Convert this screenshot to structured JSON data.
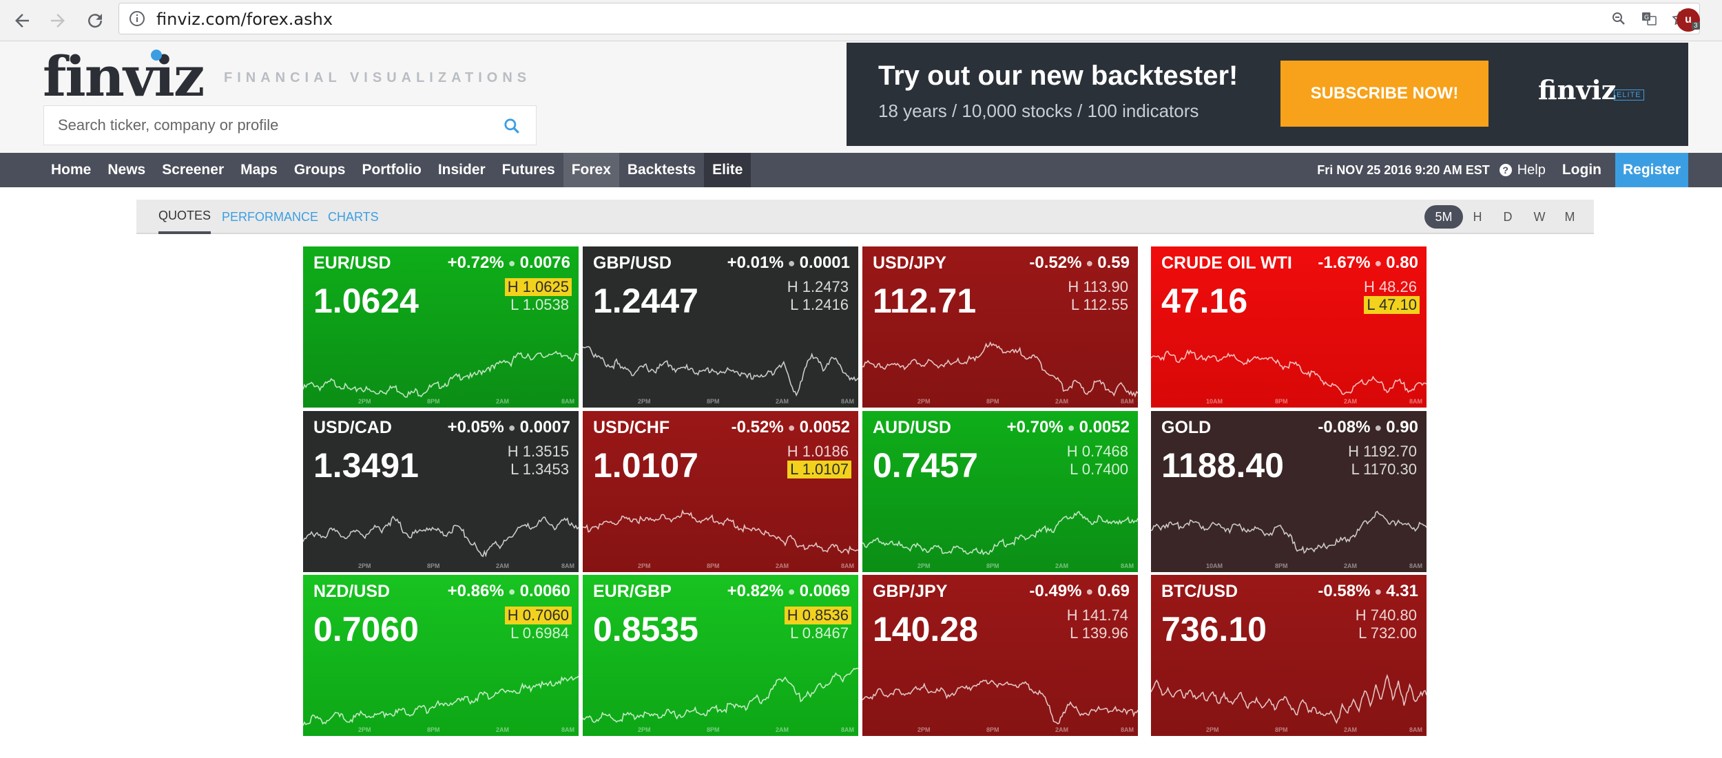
{
  "browser": {
    "url": "finviz.com/forex.ashx",
    "extension_label": "u",
    "extension_badge": "3"
  },
  "header": {
    "logo": "finviz",
    "tagline": "FINANCIAL VISUALIZATIONS",
    "search_placeholder": "Search ticker, company or profile"
  },
  "ad": {
    "headline": "Try out our new backtester!",
    "subline": "18 years / 10,000 stocks / 100 indicators",
    "button": "SUBSCRIBE NOW!",
    "logo": "finviz",
    "badge": "ELITE",
    "button_color": "#f7a21a"
  },
  "nav": {
    "items": [
      "Home",
      "News",
      "Screener",
      "Maps",
      "Groups",
      "Portfolio",
      "Insider",
      "Futures",
      "Forex",
      "Backtests",
      "Elite"
    ],
    "active": "Forex",
    "datetime": "Fri NOV 25 2016 9:20 AM EST",
    "help": "Help",
    "login": "Login",
    "register": "Register"
  },
  "subtabs": {
    "tabs": [
      "QUOTES",
      "PERFORMANCE",
      "CHARTS"
    ],
    "active_tab": "QUOTES",
    "timeframes": [
      "5M",
      "H",
      "D",
      "W",
      "M"
    ],
    "active_timeframe": "5M"
  },
  "colors": {
    "accent": "#3c9ee2",
    "nav_bg": "#4b4f5b",
    "up_green": "#0fae19",
    "down_red": "#9a1717",
    "highlight": "#f2d21c"
  },
  "tiles": [
    {
      "symbol": "EUR/USD",
      "pct": "+0.72%",
      "change": "0.0076",
      "price": "1.0624",
      "high": "H 1.0625",
      "low": "L 1.0538",
      "marked": "high",
      "theme": "green",
      "times": [
        "2PM",
        "8PM",
        "2AM",
        "8AM"
      ],
      "spark": [
        0.15,
        0.2,
        0.22,
        0.18,
        0.2,
        0.25,
        0.22,
        0.2,
        0.15,
        0.12,
        0.18,
        0.15,
        0.12,
        0.1,
        0.15,
        0.12,
        0.18,
        0.15,
        0.1,
        0.08,
        0.12,
        0.1,
        0.15,
        0.18,
        0.2,
        0.22,
        0.25,
        0.3,
        0.32,
        0.35,
        0.3,
        0.35,
        0.4,
        0.45,
        0.42,
        0.5,
        0.55,
        0.48,
        0.6,
        0.58,
        0.62,
        0.55,
        0.6,
        0.58,
        0.65,
        0.6,
        0.58,
        0.62,
        0.55,
        0.6
      ]
    },
    {
      "symbol": "GBP/USD",
      "pct": "+0.01%",
      "change": "0.0001",
      "price": "1.2447",
      "high": "H 1.2473",
      "low": "L 1.2416",
      "marked": "none",
      "theme": "dark",
      "times": [
        "2PM",
        "8PM",
        "2AM",
        "8AM"
      ],
      "spark": [
        0.7,
        0.75,
        0.6,
        0.55,
        0.5,
        0.45,
        0.5,
        0.4,
        0.45,
        0.35,
        0.4,
        0.45,
        0.42,
        0.4,
        0.45,
        0.5,
        0.45,
        0.4,
        0.42,
        0.45,
        0.4,
        0.35,
        0.4,
        0.42,
        0.38,
        0.35,
        0.4,
        0.42,
        0.35,
        0.3,
        0.32,
        0.35,
        0.3,
        0.35,
        0.4,
        0.5,
        0.45,
        0.2,
        0.1,
        0.3,
        0.5,
        0.6,
        0.55,
        0.4,
        0.5,
        0.6,
        0.45,
        0.3,
        0.25,
        0.3
      ]
    },
    {
      "symbol": "USD/JPY",
      "pct": "-0.52%",
      "change": "0.59",
      "price": "112.71",
      "high": "H 113.90",
      "low": "L 112.55",
      "marked": "none",
      "theme": "dred",
      "times": [
        "2PM",
        "8PM",
        "2AM",
        "8AM"
      ],
      "spark": [
        0.5,
        0.48,
        0.45,
        0.5,
        0.42,
        0.45,
        0.5,
        0.48,
        0.45,
        0.5,
        0.52,
        0.48,
        0.5,
        0.45,
        0.48,
        0.5,
        0.45,
        0.52,
        0.5,
        0.55,
        0.52,
        0.6,
        0.75,
        0.72,
        0.7,
        0.68,
        0.65,
        0.62,
        0.65,
        0.6,
        0.58,
        0.55,
        0.45,
        0.4,
        0.3,
        0.25,
        0.15,
        0.2,
        0.25,
        0.15,
        0.1,
        0.2,
        0.25,
        0.18,
        0.15,
        0.1,
        0.2,
        0.15,
        0.12,
        0.1
      ]
    },
    {
      "symbol": "CRUDE OIL WTI",
      "pct": "-1.67%",
      "change": "0.80",
      "price": "47.16",
      "high": "H 48.26",
      "low": "L 47.10",
      "marked": "low",
      "theme": "bred",
      "times": [
        "10AM",
        "8PM",
        "2AM",
        "8AM"
      ],
      "spark": [
        0.55,
        0.6,
        0.58,
        0.62,
        0.58,
        0.55,
        0.6,
        0.62,
        0.58,
        0.6,
        0.55,
        0.58,
        0.55,
        0.6,
        0.58,
        0.55,
        0.52,
        0.5,
        0.52,
        0.55,
        0.6,
        0.55,
        0.5,
        0.48,
        0.45,
        0.5,
        0.45,
        0.4,
        0.38,
        0.35,
        0.3,
        0.25,
        0.2,
        0.15,
        0.1,
        0.12,
        0.15,
        0.2,
        0.25,
        0.3,
        0.25,
        0.2,
        0.15,
        0.2,
        0.25,
        0.2,
        0.15,
        0.18,
        0.2,
        0.22
      ]
    },
    {
      "symbol": "USD/CAD",
      "pct": "+0.05%",
      "change": "0.0007",
      "price": "1.3491",
      "high": "H 1.3515",
      "low": "L 1.3453",
      "marked": "none",
      "theme": "dark",
      "times": [
        "2PM",
        "8PM",
        "2AM",
        "8AM"
      ],
      "spark": [
        0.35,
        0.4,
        0.38,
        0.42,
        0.4,
        0.45,
        0.42,
        0.4,
        0.38,
        0.42,
        0.45,
        0.4,
        0.45,
        0.5,
        0.48,
        0.55,
        0.6,
        0.55,
        0.45,
        0.4,
        0.42,
        0.45,
        0.5,
        0.48,
        0.45,
        0.4,
        0.45,
        0.5,
        0.45,
        0.4,
        0.3,
        0.2,
        0.1,
        0.25,
        0.3,
        0.2,
        0.35,
        0.4,
        0.45,
        0.5,
        0.55,
        0.5,
        0.55,
        0.6,
        0.55,
        0.5,
        0.55,
        0.6,
        0.55,
        0.5
      ]
    },
    {
      "symbol": "USD/CHF",
      "pct": "-0.52%",
      "change": "0.0052",
      "price": "1.0107",
      "high": "H 1.0186",
      "low": "L 1.0107",
      "marked": "low",
      "theme": "dred",
      "times": [
        "2PM",
        "8PM",
        "2AM",
        "8AM"
      ],
      "spark": [
        0.5,
        0.48,
        0.52,
        0.5,
        0.55,
        0.58,
        0.55,
        0.6,
        0.58,
        0.62,
        0.6,
        0.58,
        0.6,
        0.62,
        0.65,
        0.6,
        0.62,
        0.65,
        0.68,
        0.65,
        0.62,
        0.6,
        0.58,
        0.62,
        0.6,
        0.55,
        0.58,
        0.55,
        0.5,
        0.48,
        0.45,
        0.5,
        0.45,
        0.4,
        0.35,
        0.4,
        0.3,
        0.35,
        0.25,
        0.3,
        0.2,
        0.25,
        0.28,
        0.2,
        0.22,
        0.25,
        0.2,
        0.22,
        0.18,
        0.2
      ]
    },
    {
      "symbol": "AUD/USD",
      "pct": "+0.70%",
      "change": "0.0052",
      "price": "0.7457",
      "high": "H 0.7468",
      "low": "L 0.7400",
      "marked": "none",
      "theme": "green",
      "times": [
        "2PM",
        "8PM",
        "2AM",
        "8AM"
      ],
      "spark": [
        0.3,
        0.28,
        0.3,
        0.32,
        0.3,
        0.28,
        0.25,
        0.28,
        0.25,
        0.22,
        0.25,
        0.22,
        0.2,
        0.22,
        0.2,
        0.18,
        0.2,
        0.22,
        0.2,
        0.18,
        0.2,
        0.15,
        0.18,
        0.2,
        0.25,
        0.3,
        0.28,
        0.32,
        0.35,
        0.38,
        0.4,
        0.42,
        0.45,
        0.5,
        0.48,
        0.55,
        0.6,
        0.65,
        0.7,
        0.62,
        0.6,
        0.58,
        0.62,
        0.55,
        0.58,
        0.6,
        0.55,
        0.58,
        0.6,
        0.62
      ]
    },
    {
      "symbol": "GOLD",
      "pct": "-0.08%",
      "change": "0.90",
      "price": "1188.40",
      "high": "H 1192.70",
      "low": "L 1170.30",
      "marked": "none",
      "theme": "dbrown",
      "times": [
        "10AM",
        "8PM",
        "2AM",
        "8AM"
      ],
      "spark": [
        0.45,
        0.5,
        0.52,
        0.55,
        0.5,
        0.52,
        0.55,
        0.58,
        0.55,
        0.52,
        0.5,
        0.55,
        0.52,
        0.5,
        0.48,
        0.52,
        0.5,
        0.48,
        0.45,
        0.48,
        0.45,
        0.42,
        0.45,
        0.48,
        0.45,
        0.4,
        0.15,
        0.2,
        0.25,
        0.2,
        0.22,
        0.25,
        0.28,
        0.3,
        0.32,
        0.35,
        0.4,
        0.45,
        0.55,
        0.6,
        0.7,
        0.65,
        0.55,
        0.6,
        0.55,
        0.5,
        0.55,
        0.5,
        0.52,
        0.5
      ]
    },
    {
      "symbol": "NZD/USD",
      "pct": "+0.86%",
      "change": "0.0060",
      "price": "0.7060",
      "high": "H 0.7060",
      "low": "L 0.6984",
      "marked": "high",
      "theme": "bgreen",
      "times": [
        "2PM",
        "8PM",
        "2AM",
        "8AM"
      ],
      "spark": [
        0.08,
        0.12,
        0.15,
        0.12,
        0.1,
        0.15,
        0.18,
        0.15,
        0.12,
        0.15,
        0.18,
        0.2,
        0.18,
        0.15,
        0.2,
        0.22,
        0.2,
        0.22,
        0.25,
        0.22,
        0.25,
        0.28,
        0.25,
        0.3,
        0.32,
        0.3,
        0.35,
        0.38,
        0.35,
        0.4,
        0.38,
        0.42,
        0.45,
        0.42,
        0.48,
        0.5,
        0.48,
        0.52,
        0.5,
        0.55,
        0.52,
        0.58,
        0.6,
        0.55,
        0.6,
        0.62,
        0.65,
        0.62,
        0.68,
        0.7
      ]
    },
    {
      "symbol": "EUR/GBP",
      "pct": "+0.82%",
      "change": "0.0069",
      "price": "0.8535",
      "high": "H 0.8536",
      "low": "L 0.8467",
      "marked": "high",
      "theme": "bgreen",
      "times": [
        "2PM",
        "8PM",
        "2AM",
        "8AM"
      ],
      "spark": [
        0.1,
        0.15,
        0.12,
        0.15,
        0.18,
        0.15,
        0.12,
        0.15,
        0.18,
        0.15,
        0.2,
        0.18,
        0.15,
        0.2,
        0.18,
        0.22,
        0.2,
        0.18,
        0.22,
        0.2,
        0.25,
        0.22,
        0.2,
        0.25,
        0.28,
        0.25,
        0.3,
        0.28,
        0.32,
        0.3,
        0.35,
        0.4,
        0.38,
        0.45,
        0.55,
        0.65,
        0.7,
        0.6,
        0.45,
        0.4,
        0.5,
        0.45,
        0.55,
        0.6,
        0.65,
        0.7,
        0.65,
        0.75,
        0.78,
        0.8
      ]
    },
    {
      "symbol": "GBP/JPY",
      "pct": "-0.49%",
      "change": "0.69",
      "price": "140.28",
      "high": "H 141.74",
      "low": "L 139.96",
      "marked": "none",
      "theme": "dred",
      "times": [
        "2PM",
        "8PM",
        "2AM",
        "8AM"
      ],
      "spark": [
        0.4,
        0.45,
        0.42,
        0.5,
        0.45,
        0.48,
        0.5,
        0.45,
        0.48,
        0.52,
        0.5,
        0.55,
        0.52,
        0.48,
        0.5,
        0.45,
        0.48,
        0.5,
        0.52,
        0.55,
        0.6,
        0.58,
        0.62,
        0.65,
        0.6,
        0.58,
        0.62,
        0.6,
        0.55,
        0.58,
        0.55,
        0.5,
        0.45,
        0.3,
        0.15,
        0.1,
        0.2,
        0.35,
        0.3,
        0.2,
        0.15,
        0.25,
        0.3,
        0.25,
        0.2,
        0.3,
        0.25,
        0.2,
        0.22,
        0.25
      ]
    },
    {
      "symbol": "BTC/USD",
      "pct": "-0.58%",
      "change": "4.31",
      "price": "736.10",
      "high": "H 740.80",
      "low": "L 732.00",
      "marked": "none",
      "theme": "dred",
      "times": [
        "2PM",
        "8PM",
        "2AM",
        "8AM"
      ],
      "spark": [
        0.5,
        0.6,
        0.45,
        0.55,
        0.4,
        0.5,
        0.45,
        0.55,
        0.35,
        0.45,
        0.4,
        0.5,
        0.3,
        0.45,
        0.4,
        0.35,
        0.45,
        0.3,
        0.4,
        0.35,
        0.25,
        0.4,
        0.3,
        0.35,
        0.4,
        0.3,
        0.2,
        0.35,
        0.25,
        0.3,
        0.2,
        0.15,
        0.25,
        0.1,
        0.3,
        0.2,
        0.4,
        0.25,
        0.5,
        0.3,
        0.6,
        0.35,
        0.7,
        0.4,
        0.65,
        0.3,
        0.55,
        0.4,
        0.5,
        0.45
      ]
    }
  ]
}
